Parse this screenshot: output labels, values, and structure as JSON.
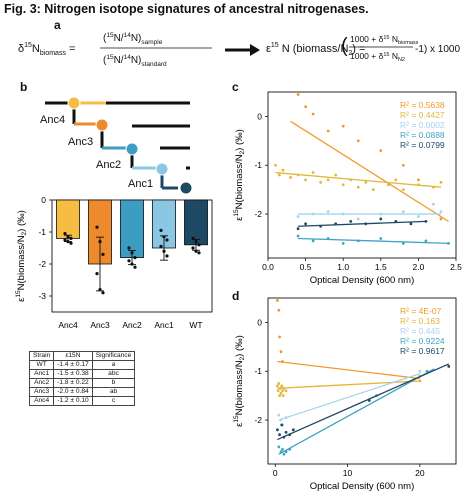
{
  "figure_title": "Fig. 3: Nitrogen isotope signatures of ancestral nitrogenases.",
  "panel_labels": {
    "a": "a",
    "b": "b",
    "c": "c",
    "d": "d"
  },
  "equation": {
    "lhs_symbol": "δ",
    "lhs_sup": "15",
    "lhs_main": "N",
    "lhs_sub": "biomass",
    "num_open": "(",
    "num_sup1": "15",
    "num_mid": "N/",
    "num_sup2": "14",
    "num_close": "N)",
    "num_sub": "sample",
    "den_sub": "standard",
    "rhs_symbol": "ε",
    "rhs_main": "N (biomass/N",
    "rhs_sub2": "2",
    "rhs_close": ") =",
    "frac_num_a": "1000 + δ",
    "frac_num_sub": "biomass",
    "frac_den_a": "1000 + δ",
    "frac_den_sub": "N2",
    "frac_tail": "-1) x 1000"
  },
  "tree": {
    "nodes": [
      "Anc4",
      "Anc3",
      "Anc2",
      "Anc1",
      "WT"
    ],
    "colors": {
      "Anc4": "#f6bd43",
      "Anc3": "#ee8a2e",
      "Anc2": "#3c9cc1",
      "Anc1": "#8ac7e3",
      "WT": "#1e4964"
    }
  },
  "table": {
    "headers": [
      "Strain",
      "ε15N",
      "Significance"
    ],
    "rows": [
      [
        "WT",
        "-1.4 ± 0.17",
        "a"
      ],
      [
        "Anc1",
        "-1.5 ± 0.38",
        "abc"
      ],
      [
        "Anc2",
        "-1.8 ± 0.22",
        "b"
      ],
      [
        "Anc3",
        "-2.0 ± 0.84",
        "ab"
      ],
      [
        "Anc4",
        "-1.2 ± 0.10",
        "c"
      ]
    ]
  },
  "chart_data": [
    {
      "panel": "b",
      "type": "bar",
      "categories": [
        "Anc4",
        "Anc3",
        "Anc2",
        "Anc1",
        "WT"
      ],
      "values": [
        -1.2,
        -2.0,
        -1.8,
        -1.5,
        -1.4
      ],
      "errors": [
        0.1,
        0.84,
        0.22,
        0.38,
        0.17
      ],
      "colors": [
        "#f6bd43",
        "#ee8a2e",
        "#3c9cc1",
        "#8ac7e3",
        "#1e4964"
      ],
      "points": [
        [
          -1.05,
          -1.15,
          -1.2,
          -1.25,
          -1.3,
          -1.35
        ],
        [
          -0.85,
          -1.3,
          -1.7,
          -2.3,
          -2.8,
          -2.9
        ],
        [
          -1.5,
          -1.65,
          -1.8,
          -1.9,
          -2.0,
          -2.1
        ],
        [
          -0.95,
          -1.15,
          -1.25,
          -1.45,
          -1.6,
          -1.75
        ],
        [
          -1.2,
          -1.3,
          -1.4,
          -1.5,
          -1.6,
          -1.65
        ]
      ],
      "ylabel": "ε15N(biomass/N2) (‰)",
      "ylim": [
        -3.5,
        0
      ],
      "yticks": [
        0,
        -1,
        -2,
        -3
      ],
      "ytick_labels": [
        "0",
        "-1",
        "-2",
        "-3"
      ]
    },
    {
      "panel": "c",
      "type": "scatter",
      "xlabel": "Optical Density (600 nm)",
      "ylabel": "ε15N(biomass/N2) (‰)",
      "xlim": [
        0,
        2.5
      ],
      "ylim": [
        -2.9,
        0.5
      ],
      "xticks": [
        0,
        0.5,
        1,
        1.5,
        2,
        2.5
      ],
      "xtick_labels": [
        "0.0",
        "0.5",
        "1.0",
        "1.5",
        "2.0",
        "2.5"
      ],
      "yticks": [
        0,
        -1,
        -2
      ],
      "ytick_labels": [
        "0",
        "-1",
        "-2"
      ],
      "legend_position": "top-right",
      "series": [
        {
          "r2": "R² = 0.5638",
          "color": "#ef9a2a",
          "line": [
            [
              0.3,
              -0.1
            ],
            [
              2.4,
              -2.15
            ]
          ],
          "points": [
            [
              0.4,
              0.45
            ],
            [
              0.5,
              0.2
            ],
            [
              0.6,
              0.05
            ],
            [
              0.8,
              -0.3
            ],
            [
              1.0,
              -0.2
            ],
            [
              1.2,
              -0.5
            ],
            [
              1.5,
              -0.7
            ],
            [
              1.8,
              -1.0
            ],
            [
              2.0,
              -1.3
            ],
            [
              2.3,
              -2.1
            ]
          ]
        },
        {
          "r2": "R² = 0.4427",
          "color": "#e3b73a",
          "line": [
            [
              0.1,
              -1.15
            ],
            [
              2.3,
              -1.45
            ]
          ],
          "points": [
            [
              0.1,
              -1.0
            ],
            [
              0.15,
              -1.2
            ],
            [
              0.2,
              -1.1
            ],
            [
              0.3,
              -1.25
            ],
            [
              0.4,
              -1.2
            ],
            [
              0.5,
              -1.3
            ],
            [
              0.6,
              -1.15
            ],
            [
              0.7,
              -1.35
            ],
            [
              0.8,
              -1.3
            ],
            [
              0.9,
              -1.2
            ],
            [
              1.0,
              -1.4
            ],
            [
              1.1,
              -1.3
            ],
            [
              1.2,
              -1.45
            ],
            [
              1.3,
              -1.35
            ],
            [
              1.4,
              -1.5
            ],
            [
              1.6,
              -1.4
            ],
            [
              1.7,
              -1.3
            ],
            [
              1.8,
              -1.5
            ],
            [
              2.0,
              -1.4
            ],
            [
              2.2,
              -1.45
            ],
            [
              2.3,
              -1.35
            ]
          ]
        },
        {
          "r2": "R² = 0.0002",
          "color": "#a5d3ec",
          "line": [
            [
              0.4,
              -2.0
            ],
            [
              2.3,
              -2.0
            ]
          ],
          "points": [
            [
              0.4,
              -2.05
            ],
            [
              0.6,
              -2.0
            ],
            [
              0.8,
              -1.95
            ],
            [
              1.0,
              -2.0
            ],
            [
              1.2,
              -2.1
            ],
            [
              1.5,
              -2.0
            ],
            [
              1.8,
              -1.95
            ],
            [
              2.0,
              -2.05
            ],
            [
              2.2,
              -1.8
            ],
            [
              2.3,
              -1.95
            ]
          ]
        },
        {
          "r2": "R² = 0.0888",
          "color": "#3ea3c4",
          "line": [
            [
              0.4,
              -2.5
            ],
            [
              2.4,
              -2.6
            ]
          ],
          "points": [
            [
              0.4,
              -2.45
            ],
            [
              0.6,
              -2.55
            ],
            [
              0.8,
              -2.5
            ],
            [
              1.0,
              -2.6
            ],
            [
              1.2,
              -2.55
            ],
            [
              1.5,
              -2.5
            ],
            [
              1.8,
              -2.6
            ],
            [
              2.1,
              -2.55
            ],
            [
              2.4,
              -2.6
            ]
          ]
        },
        {
          "r2": "R² = 0.0799",
          "color": "#1e4964",
          "line": [
            [
              0.4,
              -2.25
            ],
            [
              2.1,
              -2.15
            ]
          ],
          "points": [
            [
              0.4,
              -2.3
            ],
            [
              0.5,
              -2.2
            ],
            [
              0.7,
              -2.25
            ],
            [
              0.9,
              -2.2
            ],
            [
              1.1,
              -2.15
            ],
            [
              1.3,
              -2.2
            ],
            [
              1.5,
              -2.1
            ],
            [
              1.7,
              -2.15
            ],
            [
              1.9,
              -2.2
            ],
            [
              2.1,
              -2.15
            ]
          ]
        }
      ]
    },
    {
      "panel": "d",
      "type": "scatter",
      "xlabel": "Optical Density (600 nm)",
      "ylabel": "ε15N(biomass/N2) (‰)",
      "xlim": [
        -1,
        25
      ],
      "ylim": [
        -2.9,
        0.5
      ],
      "xticks": [
        0,
        10,
        20
      ],
      "xtick_labels": [
        "0",
        "10",
        "20"
      ],
      "yticks": [
        0,
        -1,
        -2
      ],
      "ytick_labels": [
        "0",
        "-1",
        "-2"
      ],
      "legend_position": "top-right",
      "series": [
        {
          "r2": "R² = 4E-07",
          "color": "#ef9a2a",
          "line": [
            [
              0.3,
              -0.8
            ],
            [
              20,
              -1.15
            ]
          ],
          "points": [
            [
              0.3,
              0.45
            ],
            [
              0.5,
              0.25
            ],
            [
              0.6,
              -0.3
            ],
            [
              0.8,
              -0.6
            ],
            [
              1.0,
              -0.8
            ],
            [
              20,
              -1.1
            ]
          ]
        },
        {
          "r2": "R² = 0.163",
          "color": "#e3b73a",
          "line": [
            [
              0.3,
              -1.35
            ],
            [
              20,
              -1.2
            ]
          ],
          "points": [
            [
              0.3,
              -1.3
            ],
            [
              0.4,
              -1.4
            ],
            [
              0.5,
              -1.25
            ],
            [
              0.6,
              -1.5
            ],
            [
              0.7,
              -1.35
            ],
            [
              0.8,
              -1.45
            ],
            [
              0.9,
              -1.3
            ],
            [
              1.0,
              -1.4
            ],
            [
              1.1,
              -1.5
            ],
            [
              1.2,
              -1.35
            ],
            [
              1.5,
              -1.4
            ],
            [
              20,
              -1.2
            ]
          ]
        },
        {
          "r2": "R² = 0.445",
          "color": "#a5d3ec",
          "line": [
            [
              0.5,
              -2.0
            ],
            [
              20,
              -1.05
            ]
          ],
          "points": [
            [
              0.5,
              -1.9
            ],
            [
              0.8,
              -2.0
            ],
            [
              1.0,
              -2.1
            ],
            [
              1.5,
              -1.95
            ],
            [
              20,
              -1.0
            ]
          ]
        },
        {
          "r2": "R² = 0.9224",
          "color": "#3ea3c4",
          "line": [
            [
              0.5,
              -2.7
            ],
            [
              22,
              -0.95
            ]
          ],
          "points": [
            [
              0.5,
              -2.55
            ],
            [
              0.8,
              -2.65
            ],
            [
              1.0,
              -2.6
            ],
            [
              1.2,
              -2.7
            ],
            [
              1.5,
              -2.65
            ],
            [
              2.0,
              -2.6
            ],
            [
              14,
              -1.5
            ],
            [
              21,
              -1.0
            ]
          ]
        },
        {
          "r2": "R² = 0.9617",
          "color": "#1e4964",
          "line": [
            [
              0.3,
              -2.4
            ],
            [
              24,
              -0.85
            ]
          ],
          "points": [
            [
              0.3,
              -2.2
            ],
            [
              0.6,
              -2.3
            ],
            [
              0.9,
              -2.1
            ],
            [
              1.2,
              -2.35
            ],
            [
              1.5,
              -2.25
            ],
            [
              2.0,
              -2.3
            ],
            [
              2.5,
              -2.2
            ],
            [
              13,
              -1.6
            ],
            [
              24,
              -0.9
            ]
          ]
        }
      ]
    }
  ]
}
